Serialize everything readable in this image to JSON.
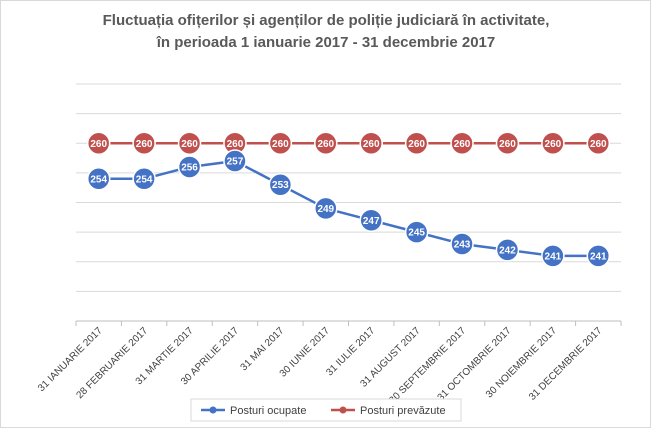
{
  "chart_data": {
    "type": "line",
    "title": "Fluctuația ofițerilor și agenților de poliție judiciară în activitate,",
    "subtitle": "în perioada 1 ianuarie 2017 - 31 decembrie 2017",
    "categories": [
      "31 IANUARIE 2017",
      "28 FEBRUARIE 2017",
      "31 MARTIE 2017",
      "30 APRILIE 2017",
      "31 MAI 2017",
      "30 IUNIE 2017",
      "31 IULIE 2017",
      "31 AUGUST 2017",
      "30 SEPTEMBRIE 2017",
      "31 OCTOMBRIE 2017",
      "30 NOIEMBRIE 2017",
      "31 DECEMBRIE 2017"
    ],
    "series": [
      {
        "name": "Posturi ocupate",
        "color": "#4472c4",
        "values": [
          254,
          254,
          256,
          257,
          253,
          249,
          247,
          245,
          243,
          242,
          241,
          241
        ]
      },
      {
        "name": "Posturi prevăzute",
        "color": "#c0504d",
        "values": [
          260,
          260,
          260,
          260,
          260,
          260,
          260,
          260,
          260,
          260,
          260,
          260
        ]
      }
    ],
    "ylim": [
      230,
      270
    ],
    "xlabel": "",
    "ylabel": "",
    "grid": true,
    "legend_position": "bottom",
    "data_labels": true
  }
}
